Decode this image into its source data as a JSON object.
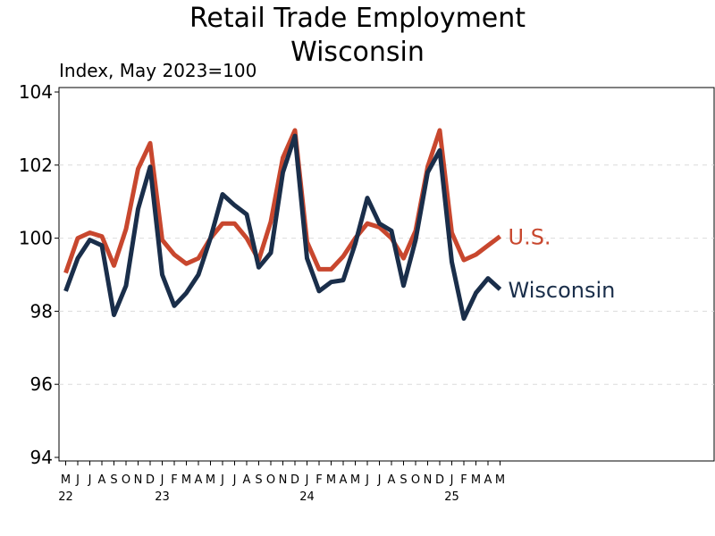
{
  "chart_data": {
    "type": "line",
    "title": "Retail Trade Employment",
    "subtitle": "Wisconsin",
    "ylabel": "Index, May 2023=100",
    "ylim": [
      94,
      104
    ],
    "yticks": [
      "94",
      "96",
      "98",
      "100",
      "102",
      "104"
    ],
    "grid": true,
    "month_labels": [
      "M",
      "J",
      "J",
      "A",
      "S",
      "O",
      "N",
      "D",
      "J",
      "F",
      "M",
      "A",
      "M",
      "J",
      "J",
      "A",
      "S",
      "O",
      "N",
      "D",
      "J",
      "F",
      "M",
      "A",
      "M",
      "J",
      "J",
      "A",
      "S",
      "O",
      "N",
      "D",
      "J",
      "F",
      "M",
      "A",
      "M"
    ],
    "year_labels": [
      {
        "text": "22",
        "index": 0
      },
      {
        "text": "23",
        "index": 8
      },
      {
        "text": "24",
        "index": 20
      },
      {
        "text": "25",
        "index": 32
      }
    ],
    "series": [
      {
        "name": "U.S.",
        "color": "#c8472e",
        "values": [
          99.05,
          100.0,
          100.15,
          100.05,
          99.25,
          100.25,
          101.9,
          102.6,
          99.95,
          99.55,
          99.3,
          99.45,
          100.0,
          100.4,
          100.4,
          100.0,
          99.4,
          100.45,
          102.2,
          102.95,
          99.9,
          99.15,
          99.15,
          99.5,
          100.0,
          100.4,
          100.3,
          100.0,
          99.45,
          100.2,
          101.95,
          102.95,
          100.15,
          99.4,
          99.55,
          99.8,
          100.05
        ]
      },
      {
        "name": "Wisconsin",
        "color": "#1a2e4a",
        "values": [
          98.55,
          99.45,
          99.95,
          99.8,
          97.9,
          98.7,
          100.8,
          101.95,
          99.0,
          98.15,
          98.5,
          99.0,
          100.0,
          101.2,
          100.9,
          100.65,
          99.2,
          99.6,
          101.8,
          102.8,
          99.45,
          98.55,
          98.8,
          98.85,
          99.85,
          101.1,
          100.4,
          100.2,
          98.7,
          99.95,
          101.8,
          102.4,
          99.35,
          97.8,
          98.5,
          98.9,
          98.6
        ]
      }
    ]
  }
}
